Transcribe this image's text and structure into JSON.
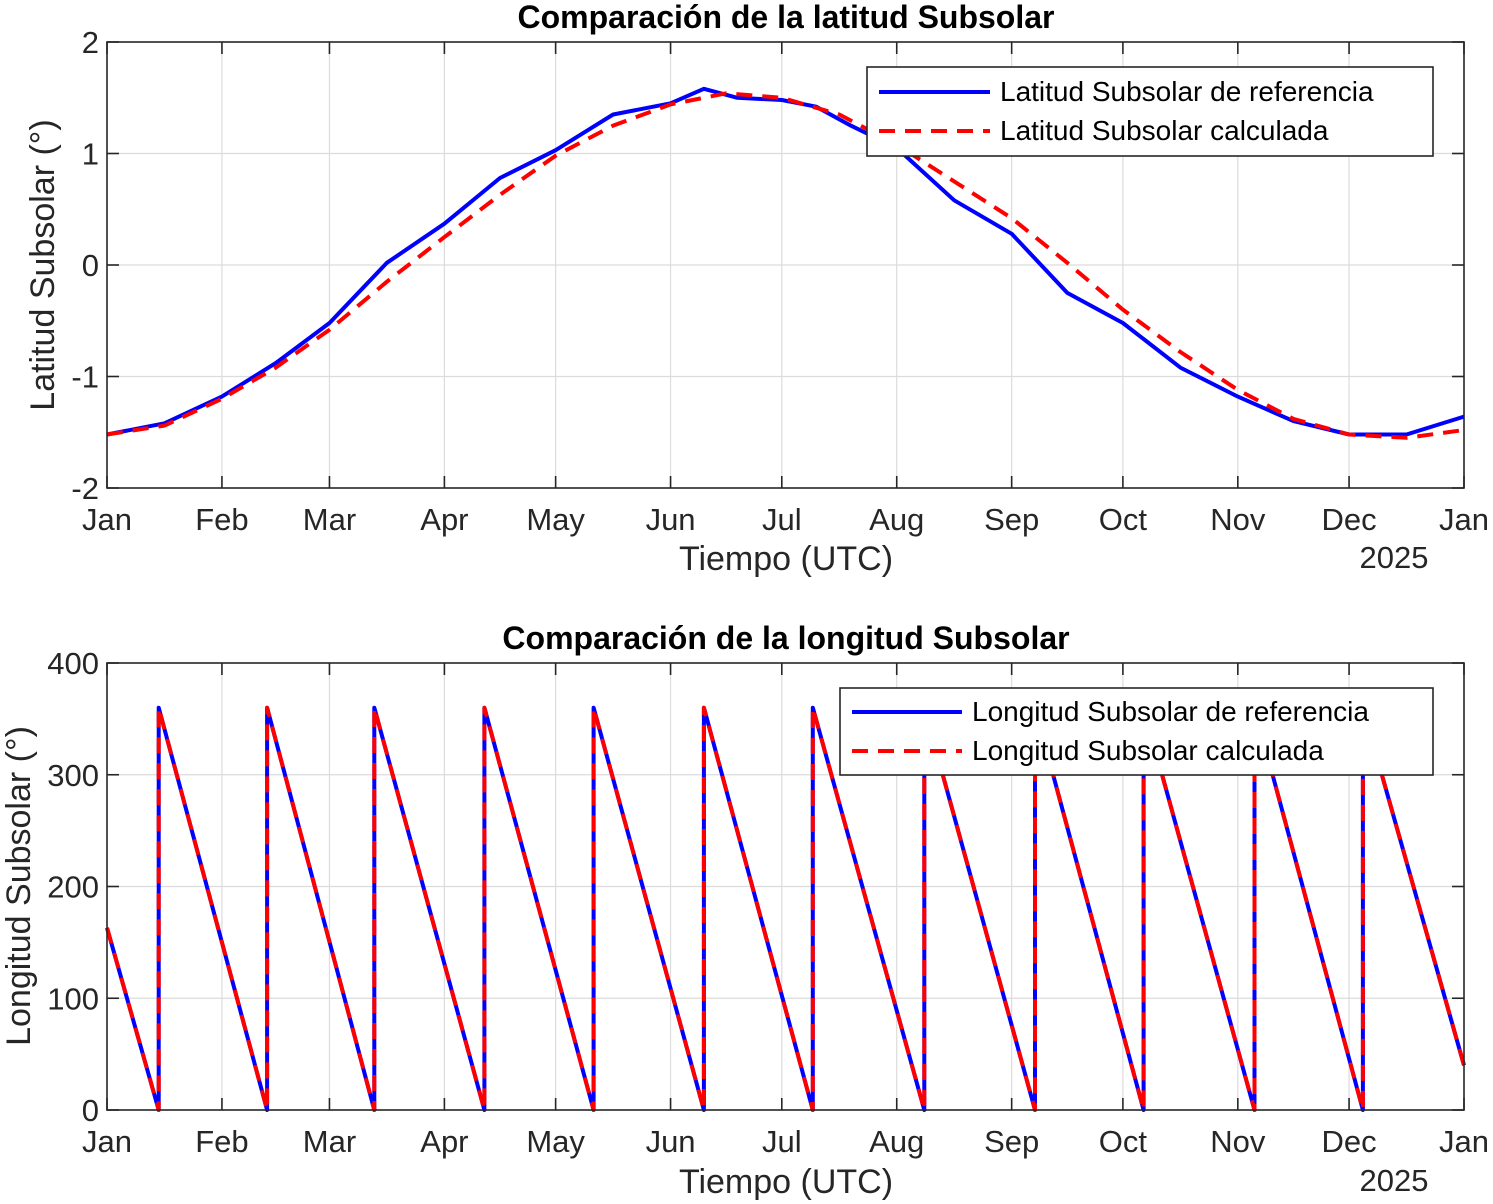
{
  "chart_data": [
    {
      "type": "line",
      "title": "Comparación de la latitud Subsolar",
      "xlabel": "Tiempo (UTC)",
      "ylabel": "Latitud Subsolar (°)",
      "year_label": "2025",
      "x_tick_labels": [
        "Jan",
        "Feb",
        "Mar",
        "Apr",
        "May",
        "Jun",
        "Jul",
        "Aug",
        "Sep",
        "Oct",
        "Nov",
        "Dec",
        "Jan"
      ],
      "y_ticks": [
        -2,
        -1,
        0,
        1,
        2
      ],
      "ylim": [
        -2,
        2
      ],
      "xlim_months": [
        0,
        12
      ],
      "grid": true,
      "legend_position": "top-right",
      "x_unit": "months from Jan 1",
      "series": [
        {
          "name": "Latitud Subsolar de referencia",
          "color": "#0000ff",
          "style": "solid",
          "x": [
            0,
            0.5,
            1,
            1.5,
            2,
            2.5,
            3,
            3.5,
            4,
            4.5,
            5,
            5.3,
            5.6,
            6,
            6.3,
            6.6,
            7,
            7.5,
            8,
            8.5,
            9,
            9.5,
            10,
            10.5,
            11,
            11.5,
            12
          ],
          "y": [
            -1.52,
            -1.42,
            -1.18,
            -0.88,
            -0.52,
            0.02,
            0.37,
            0.78,
            1.03,
            1.35,
            1.45,
            1.58,
            1.5,
            1.48,
            1.42,
            1.25,
            1.05,
            0.58,
            0.28,
            -0.25,
            -0.52,
            -0.92,
            -1.18,
            -1.4,
            -1.52,
            -1.52,
            -1.36
          ]
        },
        {
          "name": "Latitud Subsolar calculada",
          "color": "#ff0000",
          "style": "dashed",
          "x": [
            0,
            0.5,
            1,
            1.5,
            2,
            2.5,
            3,
            3.5,
            4,
            4.5,
            5,
            5.5,
            6,
            6.5,
            7,
            7.5,
            8,
            8.5,
            9,
            9.5,
            10,
            10.5,
            11,
            11.5,
            12
          ],
          "y": [
            -1.52,
            -1.44,
            -1.2,
            -0.92,
            -0.58,
            -0.15,
            0.25,
            0.63,
            0.98,
            1.25,
            1.44,
            1.54,
            1.5,
            1.35,
            1.08,
            0.75,
            0.42,
            0.02,
            -0.4,
            -0.78,
            -1.12,
            -1.38,
            -1.52,
            -1.55,
            -1.48
          ]
        }
      ]
    },
    {
      "type": "line",
      "title": "Comparación de la longitud Subsolar",
      "xlabel": "Tiempo (UTC)",
      "ylabel": "Longitud Subsolar (°)",
      "year_label": "2025",
      "x_tick_labels": [
        "Jan",
        "Feb",
        "Mar",
        "Apr",
        "May",
        "Jun",
        "Jul",
        "Aug",
        "Sep",
        "Oct",
        "Nov",
        "Dec",
        "Jan"
      ],
      "y_ticks": [
        0,
        100,
        200,
        300,
        400
      ],
      "ylim": [
        0,
        400
      ],
      "xlim_months": [
        0,
        12
      ],
      "grid": true,
      "legend_position": "top-right",
      "x_unit": "months from Jan 1",
      "series": [
        {
          "name": "Longitud Subsolar de referencia",
          "color": "#0000ff",
          "style": "solid",
          "x": [
            0,
            0.45,
            0.45,
            1.42,
            1.42,
            2.39,
            2.39,
            3.36,
            3.36,
            4.33,
            4.33,
            5.3,
            5.3,
            6.27,
            6.27,
            7.24,
            7.24,
            8.21,
            8.21,
            9.18,
            9.18,
            10.15,
            10.15,
            11.12,
            11.12,
            12
          ],
          "y": [
            163,
            0,
            360,
            0,
            360,
            0,
            360,
            0,
            360,
            0,
            360,
            0,
            360,
            0,
            360,
            0,
            360,
            0,
            360,
            0,
            360,
            0,
            360,
            0,
            360,
            40
          ]
        },
        {
          "name": "Longitud Subsolar calculada",
          "color": "#ff0000",
          "style": "dashed",
          "x": [
            0,
            0.45,
            0.45,
            1.42,
            1.42,
            2.39,
            2.39,
            3.36,
            3.36,
            4.33,
            4.33,
            5.3,
            5.3,
            6.27,
            6.27,
            7.24,
            7.24,
            8.21,
            8.21,
            9.18,
            9.18,
            10.15,
            10.15,
            11.12,
            11.12,
            12
          ],
          "y": [
            163,
            0,
            360,
            0,
            360,
            0,
            360,
            0,
            360,
            0,
            360,
            0,
            360,
            0,
            360,
            0,
            360,
            0,
            360,
            0,
            360,
            0,
            360,
            0,
            360,
            40
          ]
        }
      ]
    }
  ]
}
